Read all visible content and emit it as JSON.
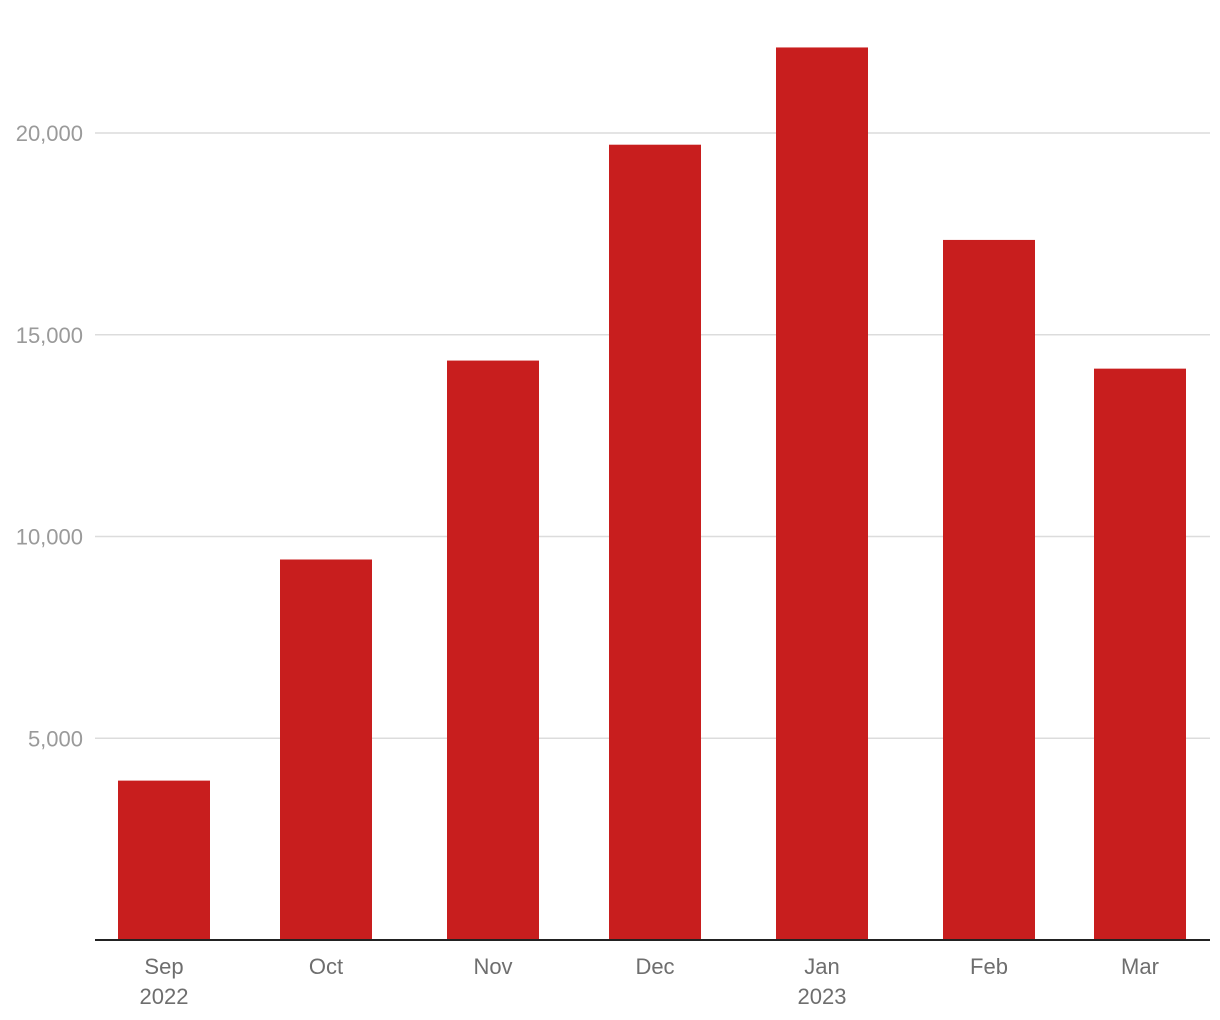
{
  "chart_data": {
    "type": "bar",
    "categories": [
      "Sep",
      "Oct",
      "Nov",
      "Dec",
      "Jan",
      "Feb",
      "Mar"
    ],
    "category_sublabels": [
      "2022",
      "",
      "",
      "",
      "2023",
      "",
      ""
    ],
    "values": [
      3950,
      9430,
      14360,
      19710,
      22120,
      17350,
      14160
    ],
    "y_ticks": [
      5000,
      10000,
      15000,
      20000
    ],
    "y_tick_labels": [
      "5,000",
      "10,000",
      "15,000",
      "20,000"
    ],
    "ylim": [
      0,
      22800
    ],
    "title": "",
    "xlabel": "",
    "ylabel": "",
    "grid": true,
    "bar_color": "#c81e1e"
  }
}
